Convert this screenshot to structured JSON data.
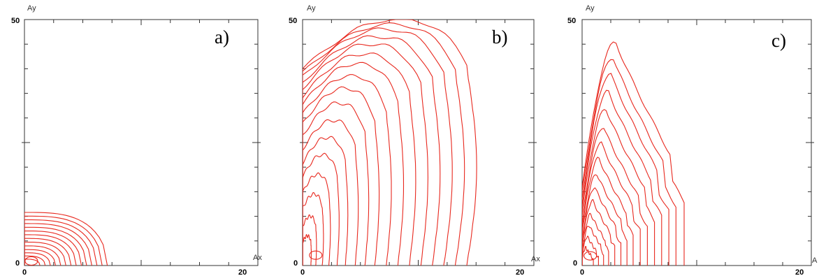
{
  "colors": {
    "contour": "#e8281e",
    "frame": "#333333",
    "background": "#ffffff"
  },
  "chart_data": [
    {
      "type": "contour",
      "panel_label": "a)",
      "xlabel": "Ax",
      "ylabel": "Ay",
      "xlim": [
        0,
        20
      ],
      "ylim": [
        0,
        50
      ],
      "x_ticks_labeled": [
        "0",
        "20"
      ],
      "y_ticks_labeled": [
        "0",
        "50"
      ],
      "grid": false,
      "levels": [
        {
          "w": 0.96,
          "h": 1.0
        },
        {
          "w": 0.9,
          "h": 0.93
        },
        {
          "w": 0.84,
          "h": 0.86
        },
        {
          "w": 0.78,
          "h": 0.79
        },
        {
          "w": 0.72,
          "h": 0.72
        },
        {
          "w": 0.66,
          "h": 0.65
        },
        {
          "w": 0.6,
          "h": 0.58
        },
        {
          "w": 0.54,
          "h": 0.51
        },
        {
          "w": 0.48,
          "h": 0.44
        },
        {
          "w": 0.42,
          "h": 0.37
        },
        {
          "w": 0.36,
          "h": 0.3
        },
        {
          "w": 0.3,
          "h": 0.24
        },
        {
          "w": 0.24,
          "h": 0.18
        },
        {
          "w": 0.18,
          "h": 0.12
        }
      ],
      "envelope": {
        "xmax": 7.4,
        "ymax": 10.8
      }
    },
    {
      "type": "contour",
      "panel_label": "b)",
      "xlabel": "Ax",
      "ylabel": "Ay",
      "xlim": [
        0,
        20
      ],
      "ylim": [
        0,
        50
      ],
      "x_ticks_labeled": [
        "0",
        "20"
      ],
      "y_ticks_labeled": [
        "0",
        "50"
      ],
      "grid": false,
      "levels": [
        {
          "w": 1.0,
          "h": 1.0
        },
        {
          "w": 0.93,
          "h": 0.98
        },
        {
          "w": 0.86,
          "h": 0.96
        },
        {
          "w": 0.79,
          "h": 0.93
        },
        {
          "w": 0.72,
          "h": 0.9
        },
        {
          "w": 0.65,
          "h": 0.86
        },
        {
          "w": 0.58,
          "h": 0.82
        },
        {
          "w": 0.51,
          "h": 0.77
        },
        {
          "w": 0.44,
          "h": 0.72
        },
        {
          "w": 0.38,
          "h": 0.66
        },
        {
          "w": 0.32,
          "h": 0.59
        },
        {
          "w": 0.26,
          "h": 0.52
        },
        {
          "w": 0.21,
          "h": 0.45
        },
        {
          "w": 0.16,
          "h": 0.37
        },
        {
          "w": 0.12,
          "h": 0.29
        },
        {
          "w": 0.08,
          "h": 0.2
        },
        {
          "w": 0.05,
          "h": 0.12
        }
      ],
      "envelope": {
        "xmax": 14.2,
        "ymax": 50.0
      }
    },
    {
      "type": "contour",
      "panel_label": "c)",
      "xlabel": "A",
      "ylabel": "Ay",
      "xlim": [
        0,
        20
      ],
      "ylim": [
        0,
        50
      ],
      "x_ticks_labeled": [
        "0",
        "20"
      ],
      "y_ticks_labeled": [
        "0",
        "50"
      ],
      "grid": false,
      "levels": [
        {
          "w": 1.0,
          "h": 1.0
        },
        {
          "w": 0.92,
          "h": 0.93
        },
        {
          "w": 0.85,
          "h": 0.86
        },
        {
          "w": 0.78,
          "h": 0.78
        },
        {
          "w": 0.71,
          "h": 0.7
        },
        {
          "w": 0.64,
          "h": 0.62
        },
        {
          "w": 0.57,
          "h": 0.55
        },
        {
          "w": 0.5,
          "h": 0.48
        },
        {
          "w": 0.44,
          "h": 0.41
        },
        {
          "w": 0.38,
          "h": 0.35
        },
        {
          "w": 0.32,
          "h": 0.29
        },
        {
          "w": 0.26,
          "h": 0.23
        },
        {
          "w": 0.21,
          "h": 0.18
        },
        {
          "w": 0.16,
          "h": 0.13
        },
        {
          "w": 0.11,
          "h": 0.08
        }
      ],
      "envelope": {
        "xmax": 8.9,
        "ymax": 45.5
      }
    }
  ]
}
